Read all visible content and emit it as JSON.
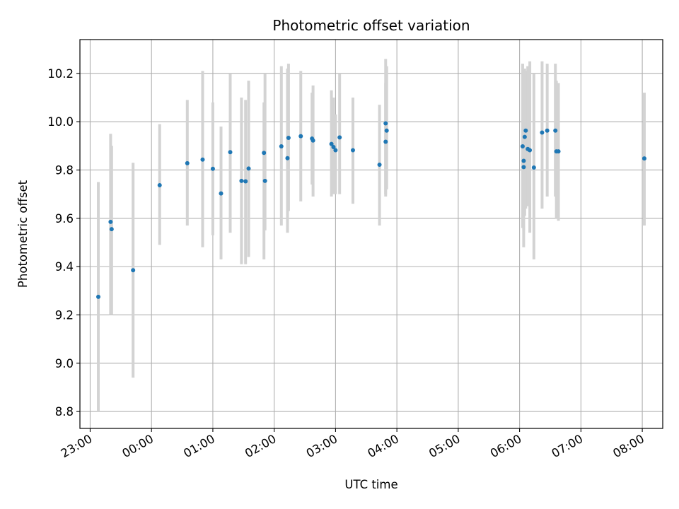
{
  "chart_data": {
    "type": "scatter",
    "title": "Photometric offset variation",
    "xlabel": "UTC time",
    "ylabel": "Photometric offset",
    "grid": true,
    "xlim": [
      "22:50",
      "08:20"
    ],
    "ylim": [
      8.73,
      10.34
    ],
    "x_ticks": [
      "23:00",
      "00:00",
      "01:00",
      "02:00",
      "03:00",
      "04:00",
      "05:00",
      "06:00",
      "07:00",
      "08:00"
    ],
    "y_ticks": [
      "8.8",
      "9.0",
      "9.2",
      "9.4",
      "9.6",
      "9.8",
      "10.0",
      "10.2"
    ],
    "colors": {
      "point": "#1f77b4",
      "errorbar": "#d3d3d3",
      "grid": "#b0b0b0"
    },
    "series": [
      {
        "x": [
          "23:08",
          "23:20",
          "23:21",
          "23:42",
          "00:08",
          "00:35",
          "00:50",
          "01:00",
          "01:08",
          "01:17",
          "01:28",
          "01:32",
          "01:35",
          "01:50",
          "01:51",
          "02:07",
          "02:13",
          "02:14",
          "02:26",
          "02:37",
          "02:38",
          "02:56",
          "02:58",
          "03:00",
          "03:04",
          "03:17",
          "03:43",
          "03:49",
          "03:49",
          "03:50",
          "06:03",
          "06:04",
          "06:04",
          "06:05",
          "06:06",
          "06:08",
          "06:10",
          "06:14",
          "06:22",
          "06:27",
          "06:35",
          "06:36",
          "06:38",
          "08:02"
        ],
        "y": [
          9.275,
          9.585,
          9.555,
          9.385,
          9.737,
          9.828,
          9.843,
          9.805,
          9.703,
          9.874,
          9.755,
          9.753,
          9.806,
          9.871,
          9.755,
          9.898,
          9.849,
          9.933,
          9.94,
          9.93,
          9.922,
          9.908,
          9.895,
          9.882,
          9.935,
          9.882,
          9.822,
          9.917,
          9.993,
          9.963,
          9.898,
          9.812,
          9.838,
          9.937,
          9.963,
          9.887,
          9.882,
          9.81,
          9.955,
          9.963,
          9.963,
          9.877,
          9.877,
          9.848
        ],
        "yerr_low": [
          8.8,
          9.2,
          9.2,
          8.94,
          9.49,
          9.57,
          9.48,
          9.53,
          9.43,
          9.54,
          9.41,
          9.41,
          9.44,
          9.43,
          9.55,
          9.57,
          9.54,
          9.63,
          9.67,
          9.74,
          9.69,
          9.69,
          9.7,
          9.7,
          9.7,
          9.66,
          9.57,
          9.69,
          9.7,
          9.72,
          9.56,
          9.48,
          9.55,
          9.61,
          9.64,
          9.65,
          9.54,
          9.43,
          9.64,
          9.69,
          9.69,
          9.6,
          9.59,
          9.57
        ],
        "yerr_high": [
          9.75,
          9.95,
          9.9,
          9.83,
          9.99,
          10.09,
          10.21,
          10.08,
          9.98,
          10.2,
          10.1,
          10.09,
          10.17,
          10.08,
          10.2,
          10.23,
          10.22,
          10.24,
          10.21,
          10.12,
          10.15,
          10.13,
          10.1,
          10.03,
          10.2,
          10.1,
          10.07,
          10.16,
          10.26,
          10.23,
          10.24,
          10.17,
          10.2,
          10.22,
          10.21,
          10.23,
          10.25,
          10.2,
          10.25,
          10.24,
          10.24,
          10.17,
          10.16,
          10.12
        ]
      }
    ]
  }
}
